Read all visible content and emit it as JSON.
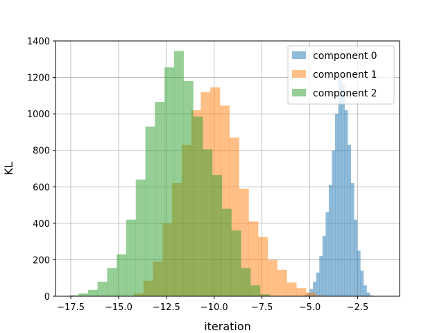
{
  "chart_data": {
    "type": "bar",
    "title": "",
    "xlabel": "iteration",
    "ylabel": "KL",
    "xlim": [
      -18.3,
      -0.3
    ],
    "ylim": [
      0,
      1400
    ],
    "xticks": [
      -17.5,
      -15.0,
      -12.5,
      -10.0,
      -7.5,
      -5.0,
      -2.5
    ],
    "xtick_labels": [
      "−17.5",
      "−15.0",
      "−12.5",
      "−10.0",
      "−7.5",
      "−5.0",
      "−2.5"
    ],
    "yticks": [
      0,
      200,
      400,
      600,
      800,
      1000,
      1200,
      1400
    ],
    "ytick_labels": [
      "0",
      "200",
      "400",
      "600",
      "800",
      "1000",
      "1200",
      "1400"
    ],
    "grid": true,
    "legend_position": "top-right",
    "series": [
      {
        "name": "component 0",
        "color": "#1f77b4",
        "bin_start": -5.49,
        "bin_width": 0.165,
        "values": [
          2,
          6,
          15,
          40,
          80,
          130,
          220,
          330,
          460,
          610,
          800,
          1000,
          1200,
          1160,
          1020,
          830,
          620,
          420,
          250,
          140,
          60,
          20,
          5
        ]
      },
      {
        "name": "component 1",
        "color": "#ff7f0e",
        "bin_start": -14.2,
        "bin_width": 0.5,
        "values": [
          15,
          85,
          190,
          400,
          620,
          830,
          1020,
          1120,
          1145,
          1045,
          870,
          590,
          410,
          325,
          200,
          145,
          75,
          45,
          20,
          5
        ]
      },
      {
        "name": "component 2",
        "color": "#2ca02c",
        "bin_start": -17.6,
        "bin_width": 0.5,
        "values": [
          5,
          15,
          35,
          80,
          155,
          230,
          420,
          640,
          930,
          1065,
          1255,
          1345,
          1180,
          985,
          805,
          665,
          480,
          360,
          155,
          60,
          10
        ]
      }
    ]
  }
}
